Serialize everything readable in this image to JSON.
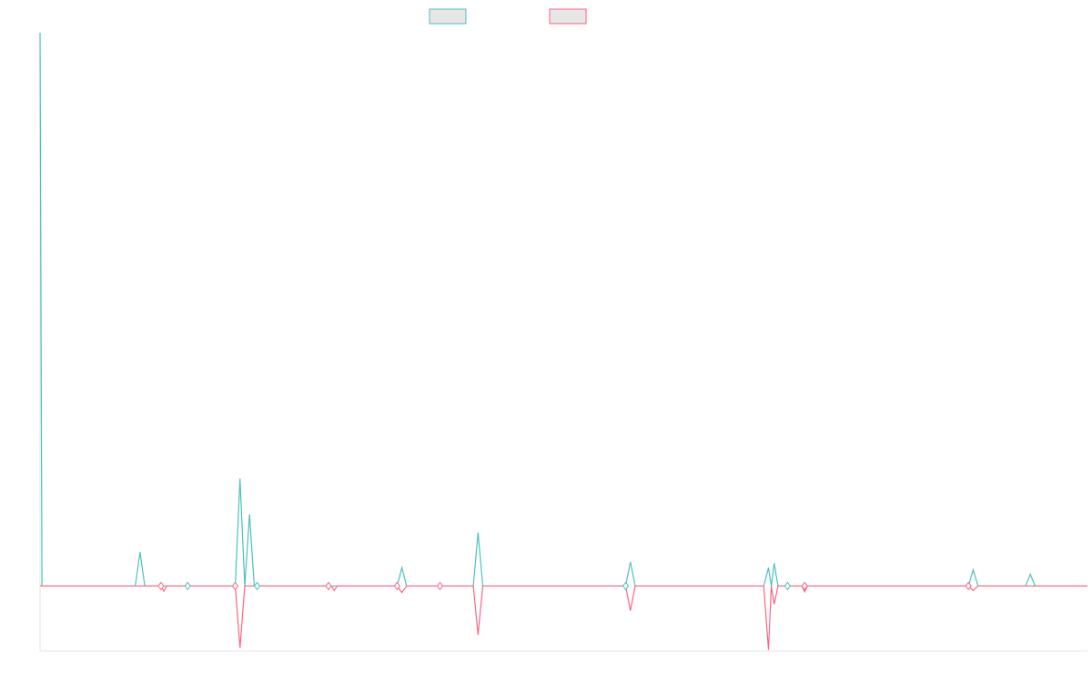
{
  "chart_data": {
    "type": "line",
    "title": "",
    "xlabel": "",
    "ylabel": "",
    "grid": false,
    "legend_position": "top-center",
    "axis_labels_shown": false,
    "ylim": [
      -100,
      850
    ],
    "series": [
      {
        "color": "#4bc0c0",
        "fill": "#e6e6e6",
        "points": [
          [
            0,
            850
          ],
          [
            2,
            0
          ],
          [
            100,
            0
          ],
          [
            105,
            52
          ],
          [
            110,
            0
          ],
          [
            205,
            0
          ],
          [
            210,
            165
          ],
          [
            215,
            0
          ],
          [
            220,
            110
          ],
          [
            225,
            0
          ],
          [
            375,
            0
          ],
          [
            380,
            28
          ],
          [
            385,
            0
          ],
          [
            455,
            0
          ],
          [
            460,
            82
          ],
          [
            465,
            0
          ],
          [
            615,
            0
          ],
          [
            620,
            37
          ],
          [
            625,
            0
          ],
          [
            760,
            0
          ],
          [
            765,
            28
          ],
          [
            768,
            0
          ],
          [
            771,
            35
          ],
          [
            775,
            0
          ],
          [
            975,
            0
          ],
          [
            980,
            25
          ],
          [
            985,
            0
          ],
          [
            1035,
            0
          ],
          [
            1040,
            18
          ],
          [
            1045,
            0
          ],
          [
            1100,
            0
          ]
        ]
      },
      {
        "color": "#ff6384",
        "fill": "#e6e6e6",
        "points": [
          [
            0,
            0
          ],
          [
            127,
            0
          ],
          [
            130,
            -8
          ],
          [
            133,
            0
          ],
          [
            205,
            0
          ],
          [
            210,
            -95
          ],
          [
            215,
            0
          ],
          [
            306,
            0
          ],
          [
            309,
            -7
          ],
          [
            312,
            0
          ],
          [
            375,
            0
          ],
          [
            380,
            -10
          ],
          [
            385,
            0
          ],
          [
            455,
            0
          ],
          [
            460,
            -75
          ],
          [
            465,
            0
          ],
          [
            615,
            0
          ],
          [
            620,
            -38
          ],
          [
            625,
            0
          ],
          [
            760,
            0
          ],
          [
            765,
            -98
          ],
          [
            768,
            0
          ],
          [
            771,
            -28
          ],
          [
            775,
            0
          ],
          [
            800,
            0
          ],
          [
            803,
            -9
          ],
          [
            806,
            0
          ],
          [
            975,
            0
          ],
          [
            980,
            -7
          ],
          [
            985,
            0
          ],
          [
            1100,
            0
          ]
        ]
      }
    ],
    "markers": [
      {
        "x": 127,
        "color": "#ff6384"
      },
      {
        "x": 155,
        "color": "#4bc0c0"
      },
      {
        "x": 205,
        "color": "#ff6384"
      },
      {
        "x": 228,
        "color": "#4bc0c0"
      },
      {
        "x": 303,
        "color": "#ff6384"
      },
      {
        "x": 375,
        "color": "#ff6384"
      },
      {
        "x": 420,
        "color": "#ff6384"
      },
      {
        "x": 615,
        "color": "#4bc0c0"
      },
      {
        "x": 785,
        "color": "#4bc0c0"
      },
      {
        "x": 803,
        "color": "#ff6384"
      },
      {
        "x": 975,
        "color": "#ff6384"
      }
    ]
  }
}
